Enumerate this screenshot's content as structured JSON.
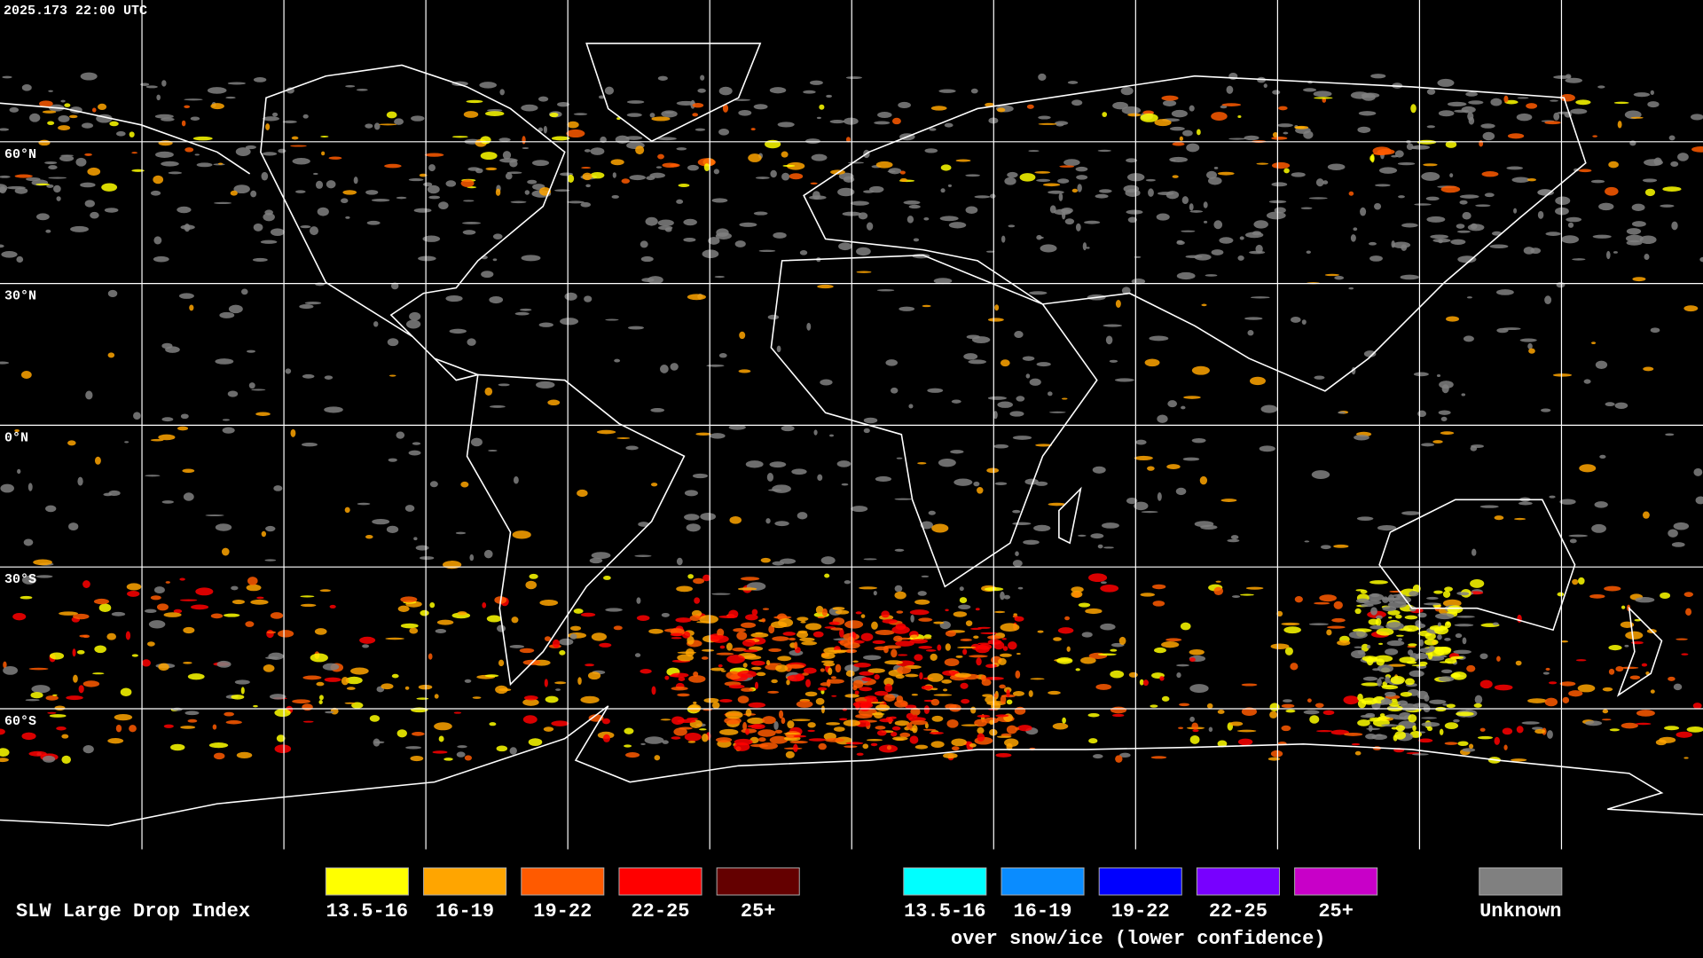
{
  "timestamp": "2025.173 22:00 UTC",
  "latitude_labels": [
    "60°N",
    "30°N",
    "0°N",
    "30°S",
    "60°S"
  ],
  "legend": {
    "title": "SLW Large Drop Index",
    "groups": [
      {
        "items": [
          {
            "label": "13.5-16",
            "color": "#ffff00"
          },
          {
            "label": "16-19",
            "color": "#ffa500"
          },
          {
            "label": "19-22",
            "color": "#ff5a00"
          },
          {
            "label": "22-25",
            "color": "#ff0000"
          },
          {
            "label": "25+",
            "color": "#640000"
          }
        ]
      },
      {
        "items": [
          {
            "label": "13.5-16",
            "color": "#00ffff"
          },
          {
            "label": "16-19",
            "color": "#0a8cff"
          },
          {
            "label": "19-22",
            "color": "#0000ff"
          },
          {
            "label": "22-25",
            "color": "#7800ff"
          },
          {
            "label": "25+",
            "color": "#c800c8"
          }
        ],
        "caption": "over snow/ice (lower confidence)"
      }
    ],
    "unknown": {
      "label": "Unknown",
      "color": "#808080"
    }
  }
}
